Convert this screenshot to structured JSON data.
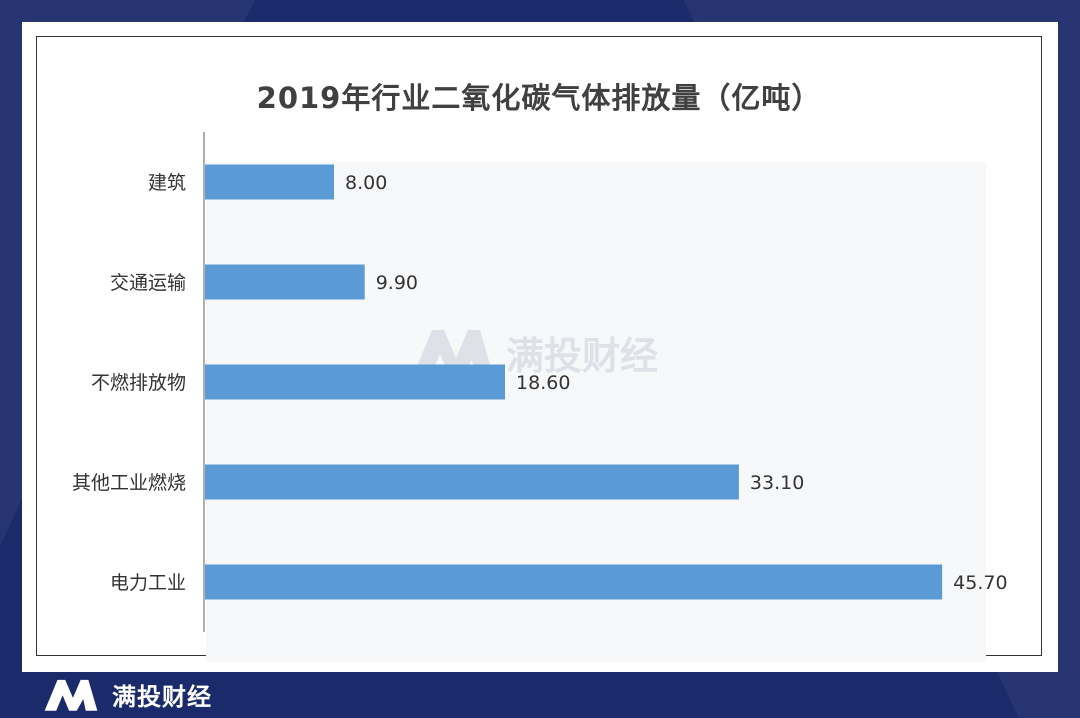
{
  "brand": {
    "name": "满投财经"
  },
  "watermark": {
    "name": "满投财经"
  },
  "chart_data": {
    "type": "bar",
    "orientation": "horizontal",
    "title": "2019年行业二氧化碳气体排放量（亿吨）",
    "categories": [
      "建筑",
      "交通运输",
      "不燃排放物",
      "其他工业燃烧",
      "电力工业"
    ],
    "values": [
      8.0,
      9.9,
      18.6,
      33.1,
      45.7
    ],
    "value_labels": [
      "8.00",
      "9.90",
      "18.60",
      "33.10",
      "45.70"
    ],
    "xlim": [
      0,
      46
    ],
    "grid": false,
    "bar_color": "#5b9bd5"
  }
}
